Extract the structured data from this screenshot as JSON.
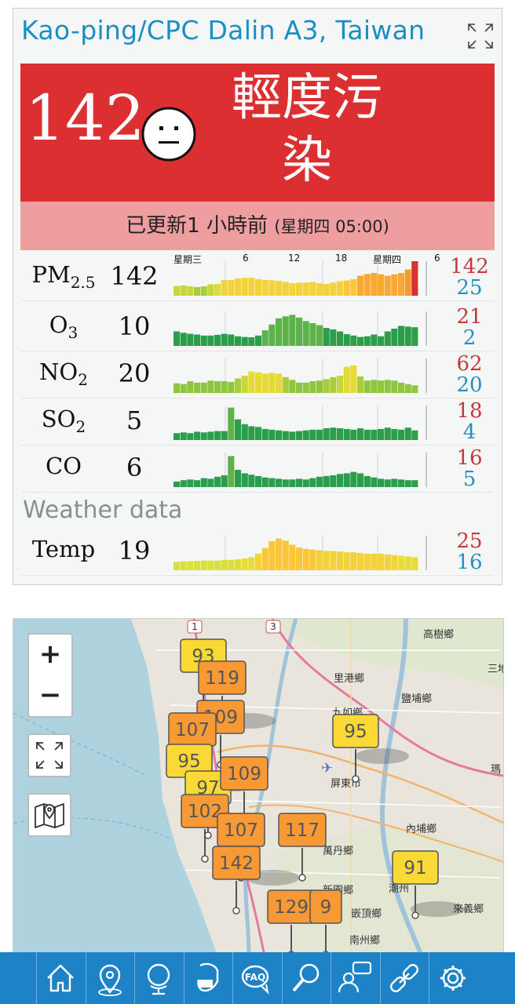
{
  "station": {
    "title": "Kao-ping/CPC Dalin A3, Taiwan"
  },
  "aqi": {
    "value": "142",
    "level_line1": "輕度污",
    "level_line2": "染",
    "updated": "已更新1 小時前",
    "updated_time": "(星期四 05:00)",
    "color": "#db2f32"
  },
  "chart_axis": {
    "labels": [
      "星期三",
      "6",
      "12",
      "18",
      "星期四",
      "6"
    ]
  },
  "pollutants": [
    {
      "name": "PM",
      "sub": "2.5",
      "value": "142",
      "max": "142",
      "min": "25",
      "bars": [
        0.28,
        0.3,
        0.27,
        0.25,
        0.27,
        0.33,
        0.34,
        0.45,
        0.46,
        0.5,
        0.52,
        0.52,
        0.48,
        0.46,
        0.45,
        0.43,
        0.4,
        0.36,
        0.38,
        0.38,
        0.4,
        0.36,
        0.34,
        0.38,
        0.42,
        0.44,
        0.48,
        0.58,
        0.63,
        0.66,
        0.62,
        0.58,
        0.62,
        0.66,
        0.76,
        1.0
      ],
      "colors": [
        "#c8d63a",
        "#c8d63a",
        "#c8d63a",
        "#a9cc3c",
        "#a9cc3c",
        "#c8d63a",
        "#d9dd3c",
        "#f2d33c",
        "#f2d33c",
        "#f2d33c",
        "#f2d33c",
        "#f2d33c",
        "#f2d33c",
        "#f2d33c",
        "#f2d33c",
        "#f2d33c",
        "#f2d33c",
        "#f2d33c",
        "#f2d33c",
        "#f2d33c",
        "#f2d33c",
        "#f2d33c",
        "#f2d33c",
        "#f2d33c",
        "#f2d33c",
        "#fbc637",
        "#fbc637",
        "#f9a835",
        "#f9a835",
        "#f9a835",
        "#f9a835",
        "#f9a835",
        "#f9a835",
        "#f9a835",
        "#f39a32",
        "#d82f2f"
      ]
    },
    {
      "name": "O",
      "sub": "3",
      "value": "10",
      "max": "21",
      "min": "2",
      "bars": [
        0.42,
        0.38,
        0.35,
        0.33,
        0.3,
        0.3,
        0.32,
        0.35,
        0.33,
        0.28,
        0.26,
        0.25,
        0.3,
        0.45,
        0.62,
        0.8,
        0.86,
        0.9,
        0.82,
        0.72,
        0.66,
        0.6,
        0.52,
        0.48,
        0.42,
        0.34,
        0.3,
        0.26,
        0.28,
        0.33,
        0.28,
        0.42,
        0.5,
        0.58,
        0.56,
        0.54
      ],
      "colors": [
        "#2b9e4b",
        "#2b9e4b",
        "#2b9e4b",
        "#2b9e4b",
        "#2b9e4b",
        "#2b9e4b",
        "#2b9e4b",
        "#2b9e4b",
        "#2b9e4b",
        "#2b9e4b",
        "#2b9e4b",
        "#2b9e4b",
        "#2b9e4b",
        "#5db34a",
        "#5db34a",
        "#5db34a",
        "#5db34a",
        "#5db34a",
        "#5db34a",
        "#5db34a",
        "#5db34a",
        "#5db34a",
        "#2b9e4b",
        "#2b9e4b",
        "#2b9e4b",
        "#2b9e4b",
        "#2b9e4b",
        "#2b9e4b",
        "#2b9e4b",
        "#2b9e4b",
        "#2b9e4b",
        "#2b9e4b",
        "#2b9e4b",
        "#2b9e4b",
        "#2b9e4b",
        "#2b9e4b"
      ]
    },
    {
      "name": "NO",
      "sub": "2",
      "value": "20",
      "max": "62",
      "min": "20",
      "bars": [
        0.28,
        0.26,
        0.34,
        0.3,
        0.3,
        0.36,
        0.34,
        0.34,
        0.32,
        0.42,
        0.5,
        0.62,
        0.6,
        0.56,
        0.58,
        0.56,
        0.46,
        0.38,
        0.3,
        0.3,
        0.34,
        0.36,
        0.4,
        0.46,
        0.5,
        0.76,
        0.8,
        0.48,
        0.36,
        0.38,
        0.36,
        0.38,
        0.36,
        0.3,
        0.26,
        0.22
      ],
      "colors": [
        "#8ec63f",
        "#8ec63f",
        "#8ec63f",
        "#8ec63f",
        "#8ec63f",
        "#8ec63f",
        "#8ec63f",
        "#8ec63f",
        "#8ec63f",
        "#a9cc3c",
        "#c8d63a",
        "#e6db36",
        "#e6db36",
        "#e6db36",
        "#e6db36",
        "#e6db36",
        "#a9cc3c",
        "#8ec63f",
        "#8ec63f",
        "#8ec63f",
        "#8ec63f",
        "#8ec63f",
        "#a9cc3c",
        "#a9cc3c",
        "#c8d63a",
        "#e6db36",
        "#e6db36",
        "#a9cc3c",
        "#8ec63f",
        "#8ec63f",
        "#8ec63f",
        "#8ec63f",
        "#8ec63f",
        "#8ec63f",
        "#8ec63f",
        "#8ec63f"
      ]
    },
    {
      "name": "SO",
      "sub": "2",
      "value": "5",
      "max": "18",
      "min": "4",
      "bars": [
        0.2,
        0.22,
        0.2,
        0.24,
        0.22,
        0.24,
        0.26,
        0.26,
        0.94,
        0.6,
        0.46,
        0.4,
        0.38,
        0.32,
        0.3,
        0.28,
        0.26,
        0.24,
        0.26,
        0.28,
        0.3,
        0.3,
        0.34,
        0.36,
        0.34,
        0.32,
        0.3,
        0.34,
        0.3,
        0.3,
        0.32,
        0.36,
        0.32,
        0.3,
        0.36,
        0.28
      ],
      "colors": [
        "#2b9e4b",
        "#2b9e4b",
        "#2b9e4b",
        "#2b9e4b",
        "#2b9e4b",
        "#2b9e4b",
        "#2b9e4b",
        "#2b9e4b",
        "#5db34a",
        "#2b9e4b",
        "#2b9e4b",
        "#2b9e4b",
        "#2b9e4b",
        "#2b9e4b",
        "#2b9e4b",
        "#2b9e4b",
        "#2b9e4b",
        "#2b9e4b",
        "#2b9e4b",
        "#2b9e4b",
        "#2b9e4b",
        "#2b9e4b",
        "#2b9e4b",
        "#2b9e4b",
        "#2b9e4b",
        "#2b9e4b",
        "#2b9e4b",
        "#2b9e4b",
        "#2b9e4b",
        "#2b9e4b",
        "#2b9e4b",
        "#2b9e4b",
        "#2b9e4b",
        "#2b9e4b",
        "#2b9e4b",
        "#2b9e4b"
      ]
    },
    {
      "name": "CO",
      "sub": "",
      "value": "6",
      "max": "16",
      "min": "5",
      "bars": [
        0.16,
        0.2,
        0.22,
        0.2,
        0.26,
        0.24,
        0.3,
        0.34,
        0.9,
        0.5,
        0.4,
        0.36,
        0.32,
        0.28,
        0.26,
        0.24,
        0.22,
        0.22,
        0.24,
        0.22,
        0.26,
        0.3,
        0.32,
        0.34,
        0.38,
        0.4,
        0.44,
        0.4,
        0.32,
        0.28,
        0.24,
        0.22,
        0.24,
        0.22,
        0.2,
        0.2
      ],
      "colors": [
        "#2b9e4b",
        "#2b9e4b",
        "#2b9e4b",
        "#2b9e4b",
        "#2b9e4b",
        "#2b9e4b",
        "#2b9e4b",
        "#2b9e4b",
        "#5db34a",
        "#2b9e4b",
        "#2b9e4b",
        "#2b9e4b",
        "#2b9e4b",
        "#2b9e4b",
        "#2b9e4b",
        "#2b9e4b",
        "#2b9e4b",
        "#2b9e4b",
        "#2b9e4b",
        "#2b9e4b",
        "#2b9e4b",
        "#2b9e4b",
        "#2b9e4b",
        "#2b9e4b",
        "#2b9e4b",
        "#2b9e4b",
        "#2b9e4b",
        "#2b9e4b",
        "#2b9e4b",
        "#2b9e4b",
        "#2b9e4b",
        "#2b9e4b",
        "#2b9e4b",
        "#2b9e4b",
        "#2b9e4b",
        "#2b9e4b"
      ]
    }
  ],
  "weather": {
    "label": "Weather data",
    "rows": [
      {
        "name": "Temp",
        "value": "19",
        "max": "25",
        "min": "16",
        "bars": [
          0.24,
          0.26,
          0.26,
          0.27,
          0.28,
          0.28,
          0.28,
          0.3,
          0.3,
          0.32,
          0.34,
          0.38,
          0.48,
          0.64,
          0.84,
          0.92,
          0.86,
          0.74,
          0.66,
          0.62,
          0.6,
          0.58,
          0.56,
          0.56,
          0.54,
          0.52,
          0.52,
          0.5,
          0.48,
          0.48,
          0.48,
          0.46,
          0.44,
          0.42,
          0.4,
          0.38
        ],
        "colors": [
          "#d9e03a",
          "#d9e03a",
          "#d9e03a",
          "#d9e03a",
          "#d9e03a",
          "#d9e03a",
          "#d9e03a",
          "#d9e03a",
          "#d9e03a",
          "#d9e03a",
          "#e8dd36",
          "#e8dd36",
          "#f2d33c",
          "#fbc637",
          "#fbc637",
          "#fbc637",
          "#fbc637",
          "#fbc637",
          "#fbc637",
          "#fbc637",
          "#fbc637",
          "#f2d33c",
          "#f2d33c",
          "#f2d33c",
          "#f2d33c",
          "#f2d33c",
          "#f2d33c",
          "#f2d33c",
          "#f2d33c",
          "#f2d33c",
          "#f2d33c",
          "#f2d33c",
          "#f2d33c",
          "#e8dd36",
          "#e8dd36",
          "#e8dd36"
        ]
      }
    ]
  },
  "map": {
    "zoom_in": "+",
    "zoom_out": "−",
    "places": [
      "高樹鄉",
      "三地",
      "里港鄉",
      "鹽埔鄉",
      "九如鄉",
      "屏東市",
      "瑪",
      "內埔鄉",
      "萬丹鄉",
      "新園鄉",
      "嵌頂鄉",
      "南州鄉",
      "來義鄉",
      "潮州"
    ],
    "road_labels": [
      "1",
      "3"
    ],
    "markers": [
      {
        "label": "93",
        "color": "#fad836"
      },
      {
        "label": "119",
        "color": "#f79a35"
      },
      {
        "label": "109",
        "color": "#f79a35"
      },
      {
        "label": "107",
        "color": "#f79a35"
      },
      {
        "label": "95",
        "color": "#fad836"
      },
      {
        "label": "95",
        "color": "#fad836"
      },
      {
        "label": "97",
        "color": "#fad836"
      },
      {
        "label": "109",
        "color": "#f79a35"
      },
      {
        "label": "102",
        "color": "#f79a35"
      },
      {
        "label": "107",
        "color": "#f79a35"
      },
      {
        "label": "117",
        "color": "#f79a35"
      },
      {
        "label": "142",
        "color": "#f79a35"
      },
      {
        "label": "91",
        "color": "#fad836"
      },
      {
        "label": "129",
        "color": "#f79a35"
      },
      {
        "label": "9",
        "color": "#f79a35"
      }
    ]
  },
  "toolbar": {
    "items": [
      "home-icon",
      "map-pin-icon",
      "globe-icon",
      "mask-icon",
      "faq-icon",
      "search-icon",
      "chat-person-icon",
      "link-icon",
      "gear-icon"
    ]
  }
}
